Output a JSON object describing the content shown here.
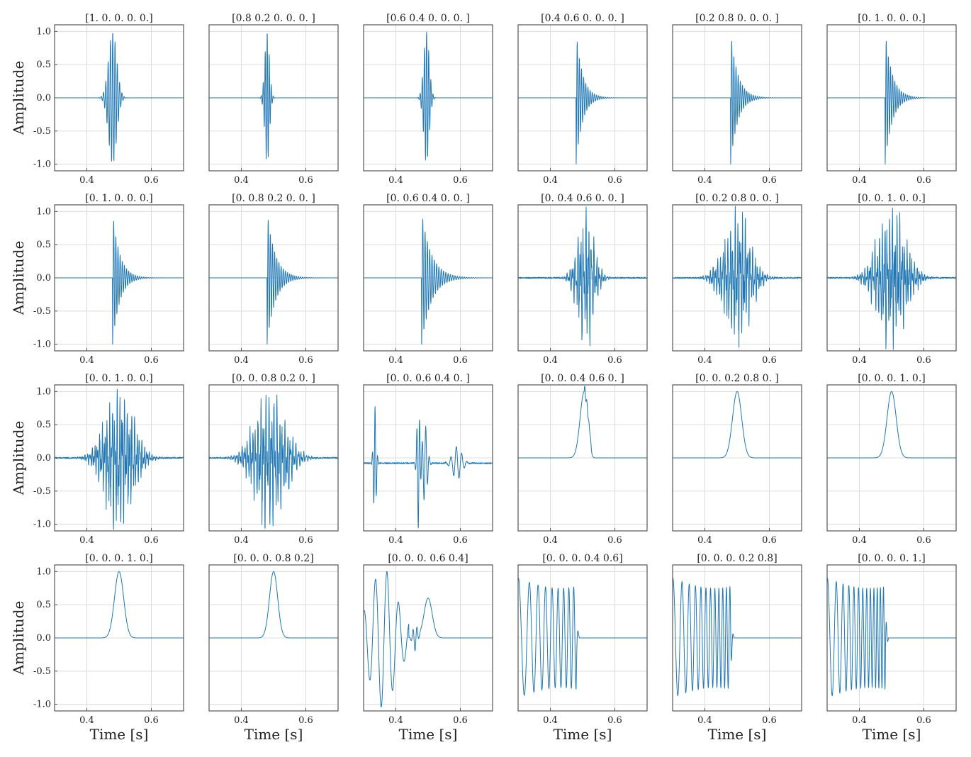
{
  "figure": {
    "ylabel": "Amplitude",
    "xlabel": "Time [s]",
    "line_color": "#1f77b4"
  },
  "chart_data": [
    {
      "type": "line",
      "row": 0,
      "col": 0,
      "title": "[1. 0. 0. 0. 0.]",
      "kind": "burst",
      "center": 0.48,
      "width": 0.018,
      "freq": 140,
      "xlim": [
        0.3,
        0.7
      ],
      "ylim": [
        -1.1,
        1.1
      ],
      "xticks": [
        0.4,
        0.6
      ],
      "yticks": [
        -1.0,
        -0.5,
        0.0,
        0.5,
        1.0
      ],
      "grid": true
    },
    {
      "type": "line",
      "row": 0,
      "col": 1,
      "title": "[0.8 0.2 0.  0.  0. ]",
      "kind": "burst",
      "center": 0.48,
      "width": 0.01,
      "freq": 160,
      "xlim": [
        0.3,
        0.7
      ],
      "ylim": [
        -1.1,
        1.1
      ],
      "xticks": [
        0.4,
        0.6
      ],
      "yticks": [
        -1.0,
        -0.5,
        0.0,
        0.5,
        1.0
      ],
      "grid": true
    },
    {
      "type": "line",
      "row": 0,
      "col": 2,
      "title": "[0.6 0.4 0.  0.  0. ]",
      "kind": "burst",
      "center": 0.495,
      "width": 0.012,
      "freq": 150,
      "xlim": [
        0.3,
        0.7
      ],
      "ylim": [
        -1.1,
        1.1
      ],
      "xticks": [
        0.4,
        0.6
      ],
      "yticks": [
        -1.0,
        -0.5,
        0.0,
        0.5,
        1.0
      ],
      "grid": true
    },
    {
      "type": "line",
      "row": 0,
      "col": 3,
      "title": "[0.4 0.6 0.  0.  0. ]",
      "kind": "decay",
      "start": 0.48,
      "tau": 0.02,
      "freq": 150,
      "xlim": [
        0.3,
        0.7
      ],
      "ylim": [
        -1.1,
        1.1
      ],
      "xticks": [
        0.4,
        0.6
      ],
      "yticks": [
        -1.0,
        -0.5,
        0.0,
        0.5,
        1.0
      ],
      "grid": true
    },
    {
      "type": "line",
      "row": 0,
      "col": 4,
      "title": "[0.2 0.8 0.  0.  0. ]",
      "kind": "decay",
      "start": 0.48,
      "tau": 0.022,
      "freq": 150,
      "xlim": [
        0.3,
        0.7
      ],
      "ylim": [
        -1.1,
        1.1
      ],
      "xticks": [
        0.4,
        0.6
      ],
      "yticks": [
        -1.0,
        -0.5,
        0.0,
        0.5,
        1.0
      ],
      "grid": true
    },
    {
      "type": "line",
      "row": 0,
      "col": 5,
      "title": "[0. 1. 0. 0. 0.]",
      "kind": "decay",
      "start": 0.48,
      "tau": 0.022,
      "freq": 150,
      "xlim": [
        0.3,
        0.7
      ],
      "ylim": [
        -1.1,
        1.1
      ],
      "xticks": [
        0.4,
        0.6
      ],
      "yticks": [
        -1.0,
        -0.5,
        0.0,
        0.5,
        1.0
      ],
      "grid": true
    },
    {
      "type": "line",
      "row": 1,
      "col": 0,
      "title": "[0. 1. 0. 0. 0.]",
      "kind": "decay",
      "start": 0.48,
      "tau": 0.022,
      "freq": 150,
      "xlim": [
        0.3,
        0.7
      ],
      "ylim": [
        -1.1,
        1.1
      ],
      "xticks": [
        0.4,
        0.6
      ],
      "yticks": [
        -1.0,
        -0.5,
        0.0,
        0.5,
        1.0
      ],
      "grid": true
    },
    {
      "type": "line",
      "row": 1,
      "col": 1,
      "title": "[0.  0.8 0.2 0.  0. ]",
      "kind": "decay",
      "start": 0.48,
      "tau": 0.025,
      "freq": 150,
      "xlim": [
        0.3,
        0.7
      ],
      "ylim": [
        -1.1,
        1.1
      ],
      "xticks": [
        0.4,
        0.6
      ],
      "yticks": [
        -1.0,
        -0.5,
        0.0,
        0.5,
        1.0
      ],
      "grid": true
    },
    {
      "type": "line",
      "row": 1,
      "col": 2,
      "title": "[0.  0.6 0.4 0.  0. ]",
      "kind": "decay",
      "start": 0.48,
      "tau": 0.03,
      "freq": 140,
      "xlim": [
        0.3,
        0.7
      ],
      "ylim": [
        -1.1,
        1.1
      ],
      "xticks": [
        0.4,
        0.6
      ],
      "yticks": [
        -1.0,
        -0.5,
        0.0,
        0.5,
        1.0
      ],
      "grid": true
    },
    {
      "type": "line",
      "row": 1,
      "col": 3,
      "title": "[0.  0.4 0.6 0.  0. ]",
      "kind": "noise",
      "center": 0.51,
      "width": 0.035,
      "freq": 120,
      "xlim": [
        0.3,
        0.7
      ],
      "ylim": [
        -1.1,
        1.1
      ],
      "xticks": [
        0.4,
        0.6
      ],
      "yticks": [
        -1.0,
        -0.5,
        0.0,
        0.5,
        1.0
      ],
      "grid": true
    },
    {
      "type": "line",
      "row": 1,
      "col": 4,
      "title": "[0.  0.2 0.8 0.  0. ]",
      "kind": "noise",
      "center": 0.5,
      "width": 0.055,
      "freq": 130,
      "xlim": [
        0.3,
        0.7
      ],
      "ylim": [
        -1.1,
        1.1
      ],
      "xticks": [
        0.4,
        0.6
      ],
      "yticks": [
        -1.0,
        -0.5,
        0.0,
        0.5,
        1.0
      ],
      "grid": true
    },
    {
      "type": "line",
      "row": 1,
      "col": 5,
      "title": "[0. 0. 1. 0. 0.]",
      "kind": "noise",
      "center": 0.5,
      "width": 0.06,
      "freq": 130,
      "xlim": [
        0.3,
        0.7
      ],
      "ylim": [
        -1.1,
        1.1
      ],
      "xticks": [
        0.4,
        0.6
      ],
      "yticks": [
        -1.0,
        -0.5,
        0.0,
        0.5,
        1.0
      ],
      "grid": true
    },
    {
      "type": "line",
      "row": 2,
      "col": 0,
      "title": "[0. 0. 1. 0. 0.]",
      "kind": "noise",
      "center": 0.5,
      "width": 0.06,
      "freq": 130,
      "xlim": [
        0.3,
        0.7
      ],
      "ylim": [
        -1.1,
        1.1
      ],
      "xticks": [
        0.4,
        0.6
      ],
      "yticks": [
        -1.0,
        -0.5,
        0.0,
        0.5,
        1.0
      ],
      "grid": true
    },
    {
      "type": "line",
      "row": 2,
      "col": 1,
      "title": "[0.  0.  0.8 0.2 0. ]",
      "kind": "noise",
      "center": 0.49,
      "width": 0.065,
      "freq": 120,
      "xlim": [
        0.3,
        0.7
      ],
      "ylim": [
        -1.1,
        1.1
      ],
      "xticks": [
        0.4,
        0.6
      ],
      "yticks": [
        -1.0,
        -0.5,
        0.0,
        0.5,
        1.0
      ],
      "grid": true
    },
    {
      "type": "line",
      "row": 2,
      "col": 2,
      "title": "[0.  0.  0.6 0.4 0. ]",
      "kind": "transition",
      "xlim": [
        0.3,
        0.7
      ],
      "ylim": [
        -1.1,
        1.1
      ],
      "xticks": [
        0.4,
        0.6
      ],
      "yticks": [
        -1.0,
        -0.5,
        0.0,
        0.5,
        1.0
      ],
      "grid": true
    },
    {
      "type": "line",
      "row": 2,
      "col": 3,
      "title": "[0.  0.  0.4 0.6 0. ]",
      "kind": "pulse",
      "center": 0.505,
      "width": 0.018,
      "wiggle": true,
      "xlim": [
        0.3,
        0.7
      ],
      "ylim": [
        -1.1,
        1.1
      ],
      "xticks": [
        0.4,
        0.6
      ],
      "yticks": [
        -1.0,
        -0.5,
        0.0,
        0.5,
        1.0
      ],
      "grid": true
    },
    {
      "type": "line",
      "row": 2,
      "col": 4,
      "title": "[0.  0.  0.2 0.8 0. ]",
      "kind": "pulse",
      "center": 0.5,
      "width": 0.02,
      "wiggle": false,
      "xlim": [
        0.3,
        0.7
      ],
      "ylim": [
        -1.1,
        1.1
      ],
      "xticks": [
        0.4,
        0.6
      ],
      "yticks": [
        -1.0,
        -0.5,
        0.0,
        0.5,
        1.0
      ],
      "grid": true
    },
    {
      "type": "line",
      "row": 2,
      "col": 5,
      "title": "[0. 0. 0. 1. 0.]",
      "kind": "pulse",
      "center": 0.5,
      "width": 0.02,
      "wiggle": false,
      "xlim": [
        0.3,
        0.7
      ],
      "ylim": [
        -1.1,
        1.1
      ],
      "xticks": [
        0.4,
        0.6
      ],
      "yticks": [
        -1.0,
        -0.5,
        0.0,
        0.5,
        1.0
      ],
      "grid": true
    },
    {
      "type": "line",
      "row": 3,
      "col": 0,
      "title": "[0. 0. 0. 1. 0.]",
      "kind": "pulse",
      "center": 0.5,
      "width": 0.02,
      "wiggle": false,
      "xlim": [
        0.3,
        0.7
      ],
      "ylim": [
        -1.1,
        1.1
      ],
      "xticks": [
        0.4,
        0.6
      ],
      "yticks": [
        -1.0,
        -0.5,
        0.0,
        0.5,
        1.0
      ],
      "grid": true
    },
    {
      "type": "line",
      "row": 3,
      "col": 1,
      "title": "[0.  0.  0.  0.8 0.2]",
      "kind": "pulse",
      "center": 0.5,
      "width": 0.018,
      "wiggle": false,
      "xlim": [
        0.3,
        0.7
      ],
      "ylim": [
        -1.1,
        1.1
      ],
      "xticks": [
        0.4,
        0.6
      ],
      "yticks": [
        -1.0,
        -0.5,
        0.0,
        0.5,
        1.0
      ],
      "grid": true
    },
    {
      "type": "line",
      "row": 3,
      "col": 2,
      "title": "[0.  0.  0.  0.6 0.4]",
      "kind": "mix",
      "xlim": [
        0.3,
        0.7
      ],
      "ylim": [
        -1.1,
        1.1
      ],
      "xticks": [
        0.4,
        0.6
      ],
      "yticks": [
        -1.0,
        -0.5,
        0.0,
        0.5,
        1.0
      ],
      "grid": true
    },
    {
      "type": "line",
      "row": 3,
      "col": 3,
      "title": "[0.  0.  0.  0.4 0.6]",
      "kind": "chirp",
      "end": 0.48,
      "f0": 25,
      "f1": 70,
      "xlim": [
        0.3,
        0.7
      ],
      "ylim": [
        -1.1,
        1.1
      ],
      "xticks": [
        0.4,
        0.6
      ],
      "yticks": [
        -1.0,
        -0.5,
        0.0,
        0.5,
        1.0
      ],
      "grid": true
    },
    {
      "type": "line",
      "row": 3,
      "col": 4,
      "title": "[0.  0.  0.  0.2 0.8]",
      "kind": "chirp",
      "end": 0.48,
      "f0": 30,
      "f1": 95,
      "xlim": [
        0.3,
        0.7
      ],
      "ylim": [
        -1.1,
        1.1
      ],
      "xticks": [
        0.4,
        0.6
      ],
      "yticks": [
        -1.0,
        -0.5,
        0.0,
        0.5,
        1.0
      ],
      "grid": true
    },
    {
      "type": "line",
      "row": 3,
      "col": 5,
      "title": "[0. 0. 0. 0. 1.]",
      "kind": "chirp",
      "end": 0.48,
      "f0": 30,
      "f1": 110,
      "xlim": [
        0.3,
        0.7
      ],
      "ylim": [
        -1.1,
        1.1
      ],
      "xticks": [
        0.4,
        0.6
      ],
      "yticks": [
        -1.0,
        -0.5,
        0.0,
        0.5,
        1.0
      ],
      "grid": true
    }
  ]
}
